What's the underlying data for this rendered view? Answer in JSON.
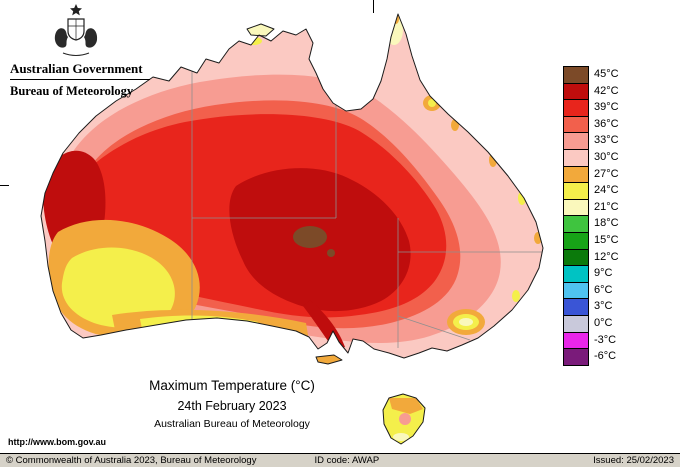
{
  "header": {
    "government": "Australian Government",
    "bureau": "Bureau of Meteorology"
  },
  "legend": {
    "items": [
      {
        "label": "45°C",
        "color": "#7C4A28"
      },
      {
        "label": "42°C",
        "color": "#BF0D0D"
      },
      {
        "label": "39°C",
        "color": "#E8251C"
      },
      {
        "label": "36°C",
        "color": "#F2604C"
      },
      {
        "label": "33°C",
        "color": "#F79C92"
      },
      {
        "label": "30°C",
        "color": "#FBC9C2"
      },
      {
        "label": "27°C",
        "color": "#F2A93B"
      },
      {
        "label": "24°C",
        "color": "#F4EF4B"
      },
      {
        "label": "21°C",
        "color": "#FAF8BC"
      },
      {
        "label": "18°C",
        "color": "#3FC43F"
      },
      {
        "label": "15°C",
        "color": "#17A317"
      },
      {
        "label": "12°C",
        "color": "#0B7A0B"
      },
      {
        "label": "9°C",
        "color": "#00C3C3"
      },
      {
        "label": "6°C",
        "color": "#4FC3F0"
      },
      {
        "label": "3°C",
        "color": "#3A55D6"
      },
      {
        "label": "0°C",
        "color": "#C9C9DB"
      },
      {
        "label": "-3°C",
        "color": "#E926E9"
      },
      {
        "label": "-6°C",
        "color": "#7A1B7A"
      }
    ]
  },
  "titles": {
    "main": "Maximum Temperature (°C)",
    "date": "24th February 2023",
    "attribution": "Australian Bureau of Meteorology",
    "url": "http://www.bom.gov.au"
  },
  "footer": {
    "copyright": "© Commonwealth of Australia 2023, Bureau of Meteorology",
    "id_code": "ID code: AWAP",
    "issued": "Issued: 25/02/2023"
  },
  "palette": {
    "base30": "#FBC9C2",
    "pink33": "#F79C92",
    "red36": "#F2604C",
    "red39": "#E8251C",
    "red42": "#BF0D0D",
    "brown45": "#7C4A28",
    "orange27": "#F2A93B",
    "yellow24": "#F4EF4B",
    "paleyellow21": "#FAF8BC"
  }
}
